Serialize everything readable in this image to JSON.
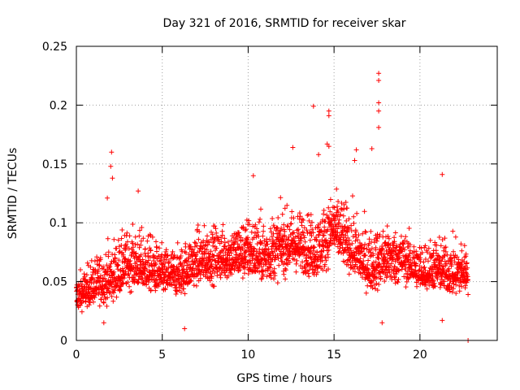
{
  "chart_data": {
    "type": "scatter",
    "title": "Day 321 of 2016, SRMTID for receiver skar",
    "xlabel": "GPS time / hours",
    "ylabel": "SRMTID / TECUs",
    "xlim": [
      0,
      24.5
    ],
    "ylim": [
      0,
      0.25
    ],
    "xticks": [
      0,
      5,
      10,
      15,
      20
    ],
    "xtick_labels": [
      "0",
      "5",
      "10",
      "15",
      "20"
    ],
    "yticks": [
      0,
      0.05,
      0.1,
      0.15,
      0.2,
      0.25
    ],
    "ytick_labels": [
      "0",
      "0.05",
      "0.1",
      "0.15",
      "0.2",
      "0.25"
    ],
    "grid": true,
    "marker": "+",
    "series": [
      {
        "name": "SRMTID",
        "color": "#ff0000",
        "note": "~2800 samples; per-hour envelope of the dense cloud plus notable outliers",
        "envelope": {
          "x": [
            0,
            1,
            2,
            3,
            4,
            5,
            6,
            7,
            8,
            9,
            10,
            11,
            12,
            13,
            14,
            15,
            16,
            17,
            18,
            19,
            20,
            21,
            22,
            22.8
          ],
          "low": [
            0.02,
            0.025,
            0.025,
            0.035,
            0.035,
            0.03,
            0.03,
            0.04,
            0.04,
            0.045,
            0.04,
            0.04,
            0.045,
            0.05,
            0.04,
            0.06,
            0.05,
            0.035,
            0.03,
            0.04,
            0.04,
            0.035,
            0.03,
            0.03
          ],
          "center": [
            0.035,
            0.045,
            0.05,
            0.065,
            0.06,
            0.055,
            0.055,
            0.065,
            0.07,
            0.07,
            0.075,
            0.07,
            0.08,
            0.08,
            0.075,
            0.095,
            0.075,
            0.06,
            0.07,
            0.07,
            0.055,
            0.06,
            0.055,
            0.06
          ],
          "high": [
            0.065,
            0.08,
            0.1,
            0.105,
            0.11,
            0.09,
            0.09,
            0.11,
            0.11,
            0.11,
            0.12,
            0.12,
            0.125,
            0.125,
            0.12,
            0.14,
            0.13,
            0.11,
            0.11,
            0.1,
            0.1,
            0.1,
            0.1,
            0.09
          ]
        },
        "outliers": [
          {
            "x": 2.05,
            "y": 0.16
          },
          {
            "x": 2.0,
            "y": 0.148
          },
          {
            "x": 2.1,
            "y": 0.138
          },
          {
            "x": 1.8,
            "y": 0.121
          },
          {
            "x": 3.6,
            "y": 0.127
          },
          {
            "x": 6.3,
            "y": 0.01
          },
          {
            "x": 10.3,
            "y": 0.14
          },
          {
            "x": 12.6,
            "y": 0.164
          },
          {
            "x": 13.8,
            "y": 0.199
          },
          {
            "x": 14.7,
            "y": 0.195
          },
          {
            "x": 14.7,
            "y": 0.191
          },
          {
            "x": 14.6,
            "y": 0.167
          },
          {
            "x": 14.7,
            "y": 0.165
          },
          {
            "x": 14.1,
            "y": 0.158
          },
          {
            "x": 16.3,
            "y": 0.162
          },
          {
            "x": 16.2,
            "y": 0.153
          },
          {
            "x": 17.6,
            "y": 0.227
          },
          {
            "x": 17.6,
            "y": 0.221
          },
          {
            "x": 17.6,
            "y": 0.202
          },
          {
            "x": 17.6,
            "y": 0.195
          },
          {
            "x": 17.6,
            "y": 0.181
          },
          {
            "x": 17.2,
            "y": 0.163
          },
          {
            "x": 17.8,
            "y": 0.015
          },
          {
            "x": 21.3,
            "y": 0.141
          },
          {
            "x": 22.8,
            "y": 0.0
          },
          {
            "x": 21.3,
            "y": 0.017
          },
          {
            "x": 1.6,
            "y": 0.015
          }
        ]
      }
    ]
  }
}
